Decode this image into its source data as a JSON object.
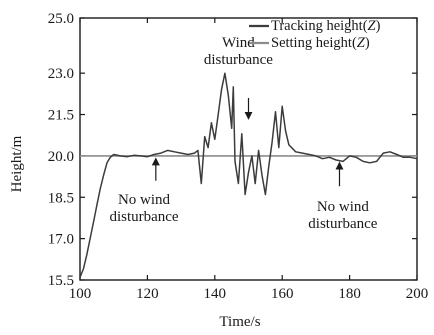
{
  "chart_data": {
    "type": "line",
    "xlabel": "Time/s",
    "ylabel": "Height/m",
    "xlim": [
      100,
      200
    ],
    "ylim": [
      15.5,
      25.0
    ],
    "x_ticks": [
      "100",
      "120",
      "140",
      "160",
      "180",
      "200"
    ],
    "y_ticks": [
      "15.5",
      "17.0",
      "18.5",
      "20.0",
      "21.5",
      "23.0",
      "25.0"
    ],
    "grid": false,
    "legend_position": "top-right",
    "legend": [
      {
        "label_prefix": "Tracking height(",
        "label_var": "Z",
        "label_suffix": ")"
      },
      {
        "label_prefix": "Setting height(",
        "label_var": "Z",
        "label_suffix": ")"
      }
    ],
    "series": [
      {
        "name": "Tracking height(Z)",
        "color": "#3c3c3c",
        "points": [
          [
            100,
            15.6
          ],
          [
            101,
            15.9
          ],
          [
            102,
            16.4
          ],
          [
            103,
            17.0
          ],
          [
            104,
            17.6
          ],
          [
            105,
            18.2
          ],
          [
            106,
            18.8
          ],
          [
            107,
            19.3
          ],
          [
            108,
            19.75
          ],
          [
            109,
            19.95
          ],
          [
            110,
            20.05
          ],
          [
            112,
            20.0
          ],
          [
            114,
            19.97
          ],
          [
            116,
            20.02
          ],
          [
            118,
            20.0
          ],
          [
            120,
            19.97
          ],
          [
            122,
            20.05
          ],
          [
            124,
            20.1
          ],
          [
            126,
            20.2
          ],
          [
            128,
            20.15
          ],
          [
            130,
            20.1
          ],
          [
            132,
            20.05
          ],
          [
            134,
            20.1
          ],
          [
            135,
            20.2
          ],
          [
            136,
            19.0
          ],
          [
            137,
            20.7
          ],
          [
            138,
            20.3
          ],
          [
            139,
            21.2
          ],
          [
            140,
            20.6
          ],
          [
            141,
            21.5
          ],
          [
            142,
            22.4
          ],
          [
            143,
            23.0
          ],
          [
            144,
            22.2
          ],
          [
            145,
            21.0
          ],
          [
            145.5,
            22.5
          ],
          [
            146,
            19.8
          ],
          [
            147,
            19.0
          ],
          [
            148,
            20.8
          ],
          [
            149,
            18.6
          ],
          [
            150,
            19.4
          ],
          [
            151,
            20.0
          ],
          [
            152,
            19.0
          ],
          [
            153,
            20.2
          ],
          [
            154,
            19.3
          ],
          [
            155,
            18.6
          ],
          [
            156,
            19.6
          ],
          [
            157,
            20.5
          ],
          [
            158,
            21.6
          ],
          [
            159,
            20.3
          ],
          [
            160,
            21.8
          ],
          [
            161,
            20.9
          ],
          [
            162,
            20.4
          ],
          [
            164,
            20.15
          ],
          [
            166,
            20.1
          ],
          [
            168,
            20.05
          ],
          [
            170,
            20.0
          ],
          [
            172,
            19.9
          ],
          [
            174,
            19.95
          ],
          [
            176,
            19.85
          ],
          [
            178,
            19.8
          ],
          [
            180,
            20.0
          ],
          [
            182,
            19.95
          ],
          [
            184,
            19.8
          ],
          [
            186,
            19.75
          ],
          [
            188,
            19.8
          ],
          [
            190,
            20.1
          ],
          [
            192,
            20.15
          ],
          [
            194,
            20.05
          ],
          [
            196,
            19.95
          ],
          [
            198,
            19.95
          ],
          [
            200,
            19.9
          ]
        ]
      },
      {
        "name": "Setting height(Z)",
        "color": "#8c8c8c",
        "points": [
          [
            100,
            20.0
          ],
          [
            200,
            20.0
          ]
        ]
      }
    ],
    "annotations": [
      {
        "id": "wind",
        "lines": [
          "Wind",
          "disturbance"
        ],
        "at": [
          147,
          23.95
        ],
        "arrow_from": [
          150,
          22.1
        ],
        "arrow_to": [
          150,
          21.45
        ]
      },
      {
        "id": "no-wind-left",
        "lines": [
          "No wind",
          "disturbance"
        ],
        "at": [
          119,
          18.25
        ],
        "arrow_from": [
          122.5,
          19.1
        ],
        "arrow_to": [
          122.5,
          19.8
        ]
      },
      {
        "id": "no-wind-right",
        "lines": [
          "No wind",
          "disturbance"
        ],
        "at": [
          178,
          18.0
        ],
        "arrow_from": [
          177,
          18.9
        ],
        "arrow_to": [
          177,
          19.65
        ]
      }
    ]
  }
}
